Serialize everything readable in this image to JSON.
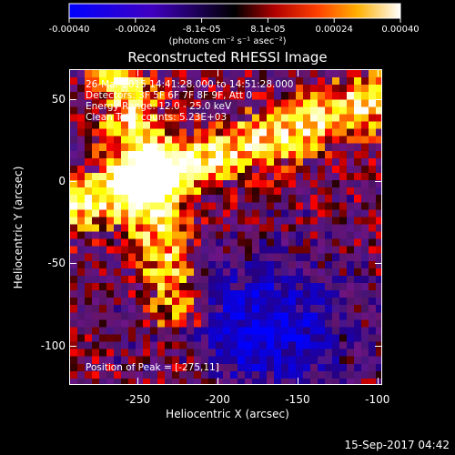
{
  "colorbar": {
    "ticks": [
      "-0.00040",
      "-0.00024",
      "-8.1e-05",
      "8.1e-05",
      "0.00024",
      "0.00040"
    ],
    "units": "(photons cm⁻² s⁻¹ asec⁻²)",
    "colors": [
      "#0000ff",
      "#4000c0",
      "#000000",
      "#ff0000",
      "#ff8000",
      "#ffff00",
      "#ffffff"
    ]
  },
  "plot": {
    "title": "Reconstructed RHESSI Image",
    "info_lines": [
      "26-Mar-2015 14:41:28.000 to 14:51:28.000",
      "Detectors: 3F 5F 6F 7F 8F 9F, Att 0",
      "Energy Range: 12.0 - 25.0 keV",
      "Clean    Total counts: 5.23E+03"
    ],
    "peak_label": "Position of Peak = [-275,11]",
    "x_axis": {
      "label": "Heliocentric X (arcsec)",
      "ticks": [
        "-250",
        "-200",
        "-150",
        "-100"
      ],
      "tick_values": [
        -250,
        -200,
        -150,
        -100
      ],
      "range": [
        -293,
        -97
      ]
    },
    "y_axis": {
      "label": "Heliocentric Y (arcsec)",
      "ticks": [
        "50",
        "0",
        "-50",
        "-100"
      ],
      "tick_values": [
        50,
        0,
        -50,
        -100
      ],
      "range": [
        -124,
        68
      ]
    }
  },
  "footer": {
    "date": "15-Sep-2017 04:42"
  }
}
